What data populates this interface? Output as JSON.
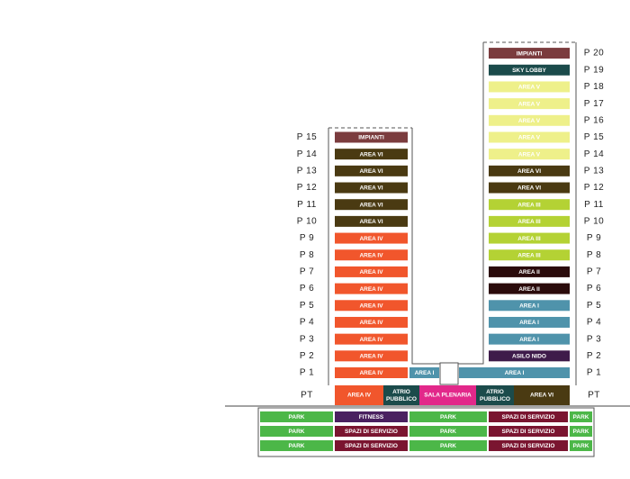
{
  "left_tower": {
    "floors": [
      {
        "level": "P 15",
        "label": "IMPIANTI",
        "color": "#7b3c3e"
      },
      {
        "level": "P 14",
        "label": "AREA VI",
        "color": "#4a3a12"
      },
      {
        "level": "P 13",
        "label": "AREA VI",
        "color": "#4a3a12"
      },
      {
        "level": "P 12",
        "label": "AREA VI",
        "color": "#4a3a12"
      },
      {
        "level": "P 11",
        "label": "AREA VI",
        "color": "#4a3a12"
      },
      {
        "level": "P 10",
        "label": "AREA VI",
        "color": "#4a3a12"
      },
      {
        "level": "P 9",
        "label": "AREA IV",
        "color": "#f1562c"
      },
      {
        "level": "P 8",
        "label": "AREA IV",
        "color": "#f1562c"
      },
      {
        "level": "P 7",
        "label": "AREA IV",
        "color": "#f1562c"
      },
      {
        "level": "P 6",
        "label": "AREA IV",
        "color": "#f1562c"
      },
      {
        "level": "P 5",
        "label": "AREA IV",
        "color": "#f1562c"
      },
      {
        "level": "P 4",
        "label": "AREA IV",
        "color": "#f1562c"
      },
      {
        "level": "P 3",
        "label": "AREA IV",
        "color": "#f1562c"
      },
      {
        "level": "P 2",
        "label": "AREA IV",
        "color": "#f1562c"
      }
    ]
  },
  "right_tower": {
    "floors": [
      {
        "level": "P 20",
        "label": "IMPIANTI",
        "color": "#7b3c3e"
      },
      {
        "level": "P 19",
        "label": "SKY LOBBY",
        "color": "#1b4b4b"
      },
      {
        "level": "P 18",
        "label": "AREA V",
        "color": "#eef08a"
      },
      {
        "level": "P 17",
        "label": "AREA V",
        "color": "#eef08a"
      },
      {
        "level": "P 16",
        "label": "AREA V",
        "color": "#eef08a"
      },
      {
        "level": "P 15",
        "label": "AREA V",
        "color": "#eef08a"
      },
      {
        "level": "P 14",
        "label": "AREA V",
        "color": "#eef08a"
      },
      {
        "level": "P 13",
        "label": "AREA VI",
        "color": "#4a3a12"
      },
      {
        "level": "P 12",
        "label": "AREA VI",
        "color": "#4a3a12"
      },
      {
        "level": "P 11",
        "label": "AREA III",
        "color": "#b4d234"
      },
      {
        "level": "P 10",
        "label": "AREA III",
        "color": "#b4d234"
      },
      {
        "level": "P 9",
        "label": "AREA III",
        "color": "#b4d234"
      },
      {
        "level": "P 8",
        "label": "AREA III",
        "color": "#b4d234"
      },
      {
        "level": "P 7",
        "label": "AREA II",
        "color": "#2b0b0b"
      },
      {
        "level": "P 6",
        "label": "AREA II",
        "color": "#2b0b0b"
      },
      {
        "level": "P 5",
        "label": "AREA I",
        "color": "#4f93ab"
      },
      {
        "level": "P 4",
        "label": "AREA I",
        "color": "#4f93ab"
      },
      {
        "level": "P 3",
        "label": "AREA I",
        "color": "#4f93ab"
      },
      {
        "level": "P 2",
        "label": "ASILO NIDO",
        "color": "#3e1b4a"
      }
    ]
  },
  "first_floor": {
    "level": "P 1",
    "cells": [
      {
        "label": "AREA IV",
        "color": "#f1562c"
      },
      {
        "label": "AREA I",
        "color": "#4f93ab"
      },
      {
        "label": "AREA I",
        "color": "#4f93ab"
      }
    ]
  },
  "ground_floor": {
    "level": "PT",
    "cells": [
      {
        "label": "AREA IV",
        "color": "#f1562c"
      },
      {
        "label": "ATRIO PUBBLICO",
        "color": "#1b4b4b"
      },
      {
        "label": "SALA PLENARIA",
        "color": "#e2288a"
      },
      {
        "label": "ATRIO PUBBLICO",
        "color": "#1b4b4b"
      },
      {
        "label": "AREA VI",
        "color": "#4a3a12"
      }
    ]
  },
  "basement": {
    "rows": [
      [
        {
          "label": "PARK",
          "color": "#4cb748"
        },
        {
          "label": "FITNESS",
          "color": "#4a2060"
        },
        {
          "label": "PARK",
          "color": "#4cb748"
        },
        {
          "label": "SPAZI DI SERVIZIO",
          "color": "#7a1530"
        },
        {
          "label": "PARK",
          "color": "#4cb748"
        }
      ],
      [
        {
          "label": "PARK",
          "color": "#4cb748"
        },
        {
          "label": "SPAZI DI SERVIZIO",
          "color": "#7a1530"
        },
        {
          "label": "PARK",
          "color": "#4cb748"
        },
        {
          "label": "SPAZI DI SERVIZIO",
          "color": "#7a1530"
        },
        {
          "label": "PARK",
          "color": "#4cb748"
        }
      ],
      [
        {
          "label": "PARK",
          "color": "#4cb748"
        },
        {
          "label": "SPAZI DI SERVIZIO",
          "color": "#7a1530"
        },
        {
          "label": "PARK",
          "color": "#4cb748"
        },
        {
          "label": "SPAZI DI SERVIZIO",
          "color": "#7a1530"
        },
        {
          "label": "PARK",
          "color": "#4cb748"
        }
      ]
    ]
  }
}
